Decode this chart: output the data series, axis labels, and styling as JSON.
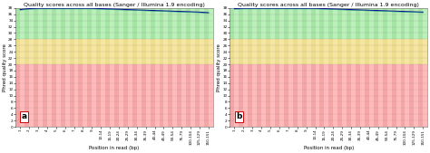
{
  "title": "Quality scores across all bases (Sanger / Illumina 1.9 encoding)",
  "ylabel": "Phred quality score",
  "xlabel": "Position in read (bp)",
  "ylim": [
    0,
    38
  ],
  "yticks": [
    0,
    2,
    4,
    6,
    8,
    10,
    12,
    14,
    16,
    18,
    20,
    22,
    24,
    26,
    28,
    30,
    32,
    34,
    36,
    38
  ],
  "xtick_labels": [
    "1",
    "2",
    "3",
    "4",
    "5",
    "6",
    "7",
    "8",
    "9",
    "10-14",
    "15-19",
    "20-24",
    "25-29",
    "30-34",
    "35-39",
    "40-44",
    "45-49",
    "50-54",
    "75-79",
    "100-104",
    "125-129",
    "150-151"
  ],
  "red_region": [
    0,
    20
  ],
  "yellow_region": [
    20,
    28
  ],
  "green_region": [
    28,
    38
  ],
  "red_color": "#ffbbbb",
  "yellow_color": "#f5e6a3",
  "green_color": "#bbf0bb",
  "red_stripe_color": "#ee9999",
  "yellow_stripe_color": "#e8d880",
  "green_stripe_color": "#99dd99",
  "line_color": "#00008b",
  "line2_color": "#008080",
  "line_values_a": [
    37.5,
    37.8,
    37.9,
    37.9,
    37.9,
    37.9,
    37.9,
    37.9,
    37.9,
    37.8,
    37.7,
    37.6,
    37.5,
    37.4,
    37.3,
    37.2,
    37.1,
    37.0,
    36.9,
    36.8,
    36.7,
    36.5
  ],
  "line_values_b": [
    37.8,
    37.9,
    37.9,
    37.9,
    37.9,
    37.9,
    37.9,
    37.9,
    37.9,
    37.9,
    37.8,
    37.7,
    37.6,
    37.5,
    37.4,
    37.3,
    37.2,
    37.1,
    37.0,
    36.9,
    36.8,
    36.7
  ],
  "label_a": "a",
  "label_b": "b",
  "title_fontsize": 4.5,
  "axis_fontsize": 4.0,
  "tick_fontsize": 3.0,
  "label_fontsize": 6.5,
  "figsize": [
    4.74,
    1.69
  ],
  "dpi": 100,
  "bg_color": "#ffffff"
}
